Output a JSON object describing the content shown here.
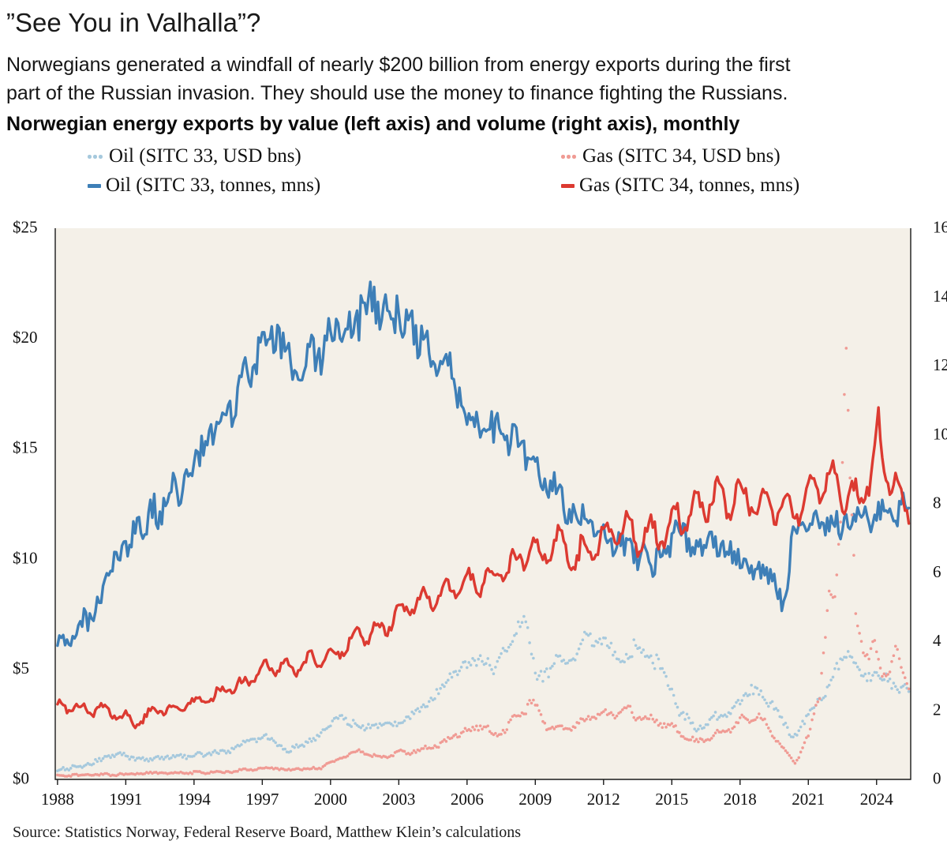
{
  "page": {
    "title": "”See You in Valhalla”?",
    "subtitle": "Norwegians generated a windfall of nearly $200 billion from energy exports during the first\npart of the Russian invasion. They should use the money to finance fighting the Russians.",
    "source": "Source: Statistics Norway, Federal Reserve Board, Matthew Klein’s calculations"
  },
  "chart_data": {
    "type": "line",
    "title": "Norwegian energy exports by value (left axis) and volume (right axis), monthly",
    "plot_bg": "#f4f0e8",
    "frame_color": "#1a1a1a",
    "text_color": "#111111",
    "x_range": [
      1987.9,
      2025.5
    ],
    "data_range": [
      1988.0,
      2025.42
    ],
    "x_ticks": [
      {
        "v": 1988,
        "label": "1988"
      },
      {
        "v": 1991,
        "label": "1991"
      },
      {
        "v": 1994,
        "label": "1994"
      },
      {
        "v": 1997,
        "label": "1997"
      },
      {
        "v": 2000,
        "label": "2000"
      },
      {
        "v": 2003,
        "label": "2003"
      },
      {
        "v": 2006,
        "label": "2006"
      },
      {
        "v": 2009,
        "label": "2009"
      },
      {
        "v": 2012,
        "label": "2012"
      },
      {
        "v": 2015,
        "label": "2015"
      },
      {
        "v": 2018,
        "label": "2018"
      },
      {
        "v": 2021,
        "label": "2021"
      },
      {
        "v": 2024,
        "label": "2024"
      }
    ],
    "left_axis": {
      "label": "USD bns",
      "range": [
        0,
        25
      ],
      "ticks": [
        {
          "v": 0,
          "label": "$0"
        },
        {
          "v": 5,
          "label": "$5"
        },
        {
          "v": 10,
          "label": "$10"
        },
        {
          "v": 15,
          "label": "$15"
        },
        {
          "v": 20,
          "label": "$20"
        },
        {
          "v": 25,
          "label": "$25"
        }
      ]
    },
    "right_axis": {
      "label": "tonnes, mns",
      "range": [
        0,
        16
      ],
      "ticks": [
        {
          "v": 0,
          "label": "0"
        },
        {
          "v": 2,
          "label": "2"
        },
        {
          "v": 4,
          "label": "4"
        },
        {
          "v": 6,
          "label": "6"
        },
        {
          "v": 8,
          "label": "8"
        },
        {
          "v": 10,
          "label": "10"
        },
        {
          "v": 12,
          "label": "12"
        },
        {
          "v": 14,
          "label": "14"
        },
        {
          "v": 16,
          "label": "16"
        }
      ]
    },
    "series": [
      {
        "name": "Oil (SITC 33, USD bns)",
        "id": "oil-usd",
        "axis": "left",
        "style": "dotted",
        "color": "#a6c9dd",
        "z": 1,
        "seed": 11,
        "noise_base": 0.07,
        "noise_rel": 0.05,
        "seasonal_rel": 0,
        "seasonal_phase": 0,
        "anchors": [
          [
            1988,
            0.4
          ],
          [
            1989,
            0.6
          ],
          [
            1990,
            0.95
          ],
          [
            1990.8,
            1.1
          ],
          [
            1991.6,
            0.9
          ],
          [
            1993,
            1.0
          ],
          [
            1994.5,
            1.1
          ],
          [
            1995.5,
            1.3
          ],
          [
            1996.5,
            1.8
          ],
          [
            1997.3,
            1.9
          ],
          [
            1998.2,
            1.3
          ],
          [
            1999,
            1.6
          ],
          [
            1999.9,
            2.4
          ],
          [
            2000.5,
            2.9
          ],
          [
            2001.4,
            2.3
          ],
          [
            2002.2,
            2.4
          ],
          [
            2003,
            2.6
          ],
          [
            2004,
            3.2
          ],
          [
            2005,
            4.3
          ],
          [
            2006,
            5.2
          ],
          [
            2006.6,
            5.6
          ],
          [
            2007.2,
            5.0
          ],
          [
            2007.9,
            6.2
          ],
          [
            2008.5,
            7.6
          ],
          [
            2009.1,
            4.4
          ],
          [
            2009.9,
            5.4
          ],
          [
            2010.6,
            5.5
          ],
          [
            2011.3,
            6.6
          ],
          [
            2012,
            6.1
          ],
          [
            2012.7,
            5.5
          ],
          [
            2013.3,
            6.0
          ],
          [
            2014,
            5.6
          ],
          [
            2014.7,
            4.9
          ],
          [
            2015.3,
            3.2
          ],
          [
            2016.1,
            2.4
          ],
          [
            2016.9,
            2.9
          ],
          [
            2017.6,
            3.1
          ],
          [
            2018.5,
            4.0
          ],
          [
            2019.4,
            3.5
          ],
          [
            2020.3,
            1.9
          ],
          [
            2021,
            2.8
          ],
          [
            2021.6,
            3.7
          ],
          [
            2022.3,
            5.2
          ],
          [
            2022.8,
            5.8
          ],
          [
            2023.4,
            4.6
          ],
          [
            2024,
            4.9
          ],
          [
            2024.7,
            4.3
          ],
          [
            2025.4,
            4.2
          ]
        ]
      },
      {
        "name": "Gas (SITC 34, USD bns)",
        "id": "gas-usd",
        "axis": "left",
        "style": "dotted",
        "color": "#f09b94",
        "z": 4,
        "seed": 22,
        "noise_base": 0.04,
        "noise_rel": 0.045,
        "seasonal_rel": 0.05,
        "seasonal_phase": 0.8,
        "anchors": [
          [
            1988,
            0.18
          ],
          [
            1990,
            0.22
          ],
          [
            1992,
            0.27
          ],
          [
            1994,
            0.3
          ],
          [
            1995.5,
            0.35
          ],
          [
            1997,
            0.5
          ],
          [
            1998.5,
            0.45
          ],
          [
            1999.6,
            0.55
          ],
          [
            2000.6,
            1.05
          ],
          [
            2001.3,
            1.35
          ],
          [
            2002.1,
            1.0
          ],
          [
            2003,
            1.2
          ],
          [
            2004,
            1.3
          ],
          [
            2005,
            1.7
          ],
          [
            2005.9,
            2.2
          ],
          [
            2006.6,
            2.4
          ],
          [
            2007.3,
            2.0
          ],
          [
            2008,
            2.7
          ],
          [
            2008.8,
            3.5
          ],
          [
            2009.6,
            2.3
          ],
          [
            2010.3,
            2.2
          ],
          [
            2011,
            2.6
          ],
          [
            2012,
            3.0
          ],
          [
            2013,
            3.1
          ],
          [
            2014,
            2.7
          ],
          [
            2015,
            2.4
          ],
          [
            2016,
            1.7
          ],
          [
            2017,
            2.0
          ],
          [
            2018,
            2.6
          ],
          [
            2018.8,
            2.9
          ],
          [
            2019.6,
            1.8
          ],
          [
            2020.4,
            0.7
          ],
          [
            2021,
            1.9
          ],
          [
            2021.5,
            4.0
          ],
          [
            2021.9,
            8.5
          ],
          [
            2022.15,
            7.8
          ],
          [
            2022.45,
            12.5
          ],
          [
            2022.63,
            21.4
          ],
          [
            2022.8,
            14.5
          ],
          [
            2023.1,
            7.0
          ],
          [
            2023.5,
            5.6
          ],
          [
            2023.9,
            6.2
          ],
          [
            2024.3,
            4.6
          ],
          [
            2024.8,
            5.9
          ],
          [
            2025.1,
            4.8
          ],
          [
            2025.4,
            4.1
          ]
        ]
      },
      {
        "name": "Oil (SITC 33, tonnes, mns)",
        "id": "oil-tonnes",
        "axis": "right",
        "style": "solid",
        "color": "#3e7fb7",
        "z": 2,
        "seed": 33,
        "noise_base": 0.2,
        "noise_rel": 0.042,
        "seasonal_rel": 0,
        "seasonal_phase": 0,
        "anchors": [
          [
            1988,
            4.15
          ],
          [
            1988.6,
            4.3
          ],
          [
            1989.5,
            4.9
          ],
          [
            1990.5,
            6.3
          ],
          [
            1991.5,
            7.2
          ],
          [
            1992.5,
            7.9
          ],
          [
            1993.5,
            8.7
          ],
          [
            1994.5,
            9.6
          ],
          [
            1995.5,
            10.4
          ],
          [
            1996.5,
            11.9
          ],
          [
            1997.3,
            12.9
          ],
          [
            1998.1,
            12.4
          ],
          [
            1998.9,
            12.1
          ],
          [
            1999.6,
            12.4
          ],
          [
            2000.3,
            13.1
          ],
          [
            2001,
            13.2
          ],
          [
            2001.8,
            13.8
          ],
          [
            2002.6,
            13.3
          ],
          [
            2003.3,
            13.0
          ],
          [
            2004.1,
            12.6
          ],
          [
            2004.9,
            12.0
          ],
          [
            2005.6,
            11.3
          ],
          [
            2006.3,
            10.6
          ],
          [
            2007.1,
            10.1
          ],
          [
            2008.1,
            9.7
          ],
          [
            2009,
            9.2
          ],
          [
            2010,
            8.3
          ],
          [
            2011,
            7.4
          ],
          [
            2012,
            7.1
          ],
          [
            2013,
            6.8
          ],
          [
            2014.1,
            6.4
          ],
          [
            2014.9,
            6.9
          ],
          [
            2015.6,
            7.0
          ],
          [
            2016.6,
            6.9
          ],
          [
            2017.6,
            6.6
          ],
          [
            2018.6,
            6.2
          ],
          [
            2019.4,
            6.1
          ],
          [
            2019.9,
            4.9
          ],
          [
            2020.3,
            7.0
          ],
          [
            2021,
            7.3
          ],
          [
            2022,
            7.3
          ],
          [
            2023,
            7.5
          ],
          [
            2024,
            7.7
          ],
          [
            2025.4,
            8.1
          ]
        ]
      },
      {
        "name": "Gas (SITC 34, tonnes, mns)",
        "id": "gas-tonnes",
        "axis": "right",
        "style": "solid",
        "color": "#dc3a31",
        "z": 3,
        "seed": 44,
        "noise_base": 0.06,
        "noise_rel": 0.028,
        "seasonal_rel": 0.055,
        "seasonal_phase": 0.8,
        "anchors": [
          [
            1988,
            2.1
          ],
          [
            1989,
            2.05
          ],
          [
            1990.2,
            2.0
          ],
          [
            1991,
            1.8
          ],
          [
            1991.4,
            1.6
          ],
          [
            1992.1,
            2.0
          ],
          [
            1993,
            2.05
          ],
          [
            1994,
            2.2
          ],
          [
            1995,
            2.45
          ],
          [
            1996,
            2.75
          ],
          [
            1997,
            3.15
          ],
          [
            1998,
            3.3
          ],
          [
            1999,
            3.4
          ],
          [
            2000,
            3.55
          ],
          [
            2001,
            4.0
          ],
          [
            2002,
            4.35
          ],
          [
            2003,
            4.8
          ],
          [
            2004,
            5.2
          ],
          [
            2005,
            5.5
          ],
          [
            2006,
            5.6
          ],
          [
            2007,
            5.75
          ],
          [
            2008,
            6.3
          ],
          [
            2009,
            6.5
          ],
          [
            2010,
            6.8
          ],
          [
            2010.9,
            6.4
          ],
          [
            2011.6,
            6.7
          ],
          [
            2012.2,
            7.3
          ],
          [
            2013,
            7.1
          ],
          [
            2014,
            7.0
          ],
          [
            2015,
            7.5
          ],
          [
            2016,
            7.8
          ],
          [
            2017,
            8.2
          ],
          [
            2018,
            8.2
          ],
          [
            2019,
            8.0
          ],
          [
            2020,
            7.7
          ],
          [
            2020.8,
            8.0
          ],
          [
            2021.4,
            8.5
          ],
          [
            2022,
            8.6
          ],
          [
            2022.7,
            8.3
          ],
          [
            2023.3,
            8.2
          ],
          [
            2023.85,
            9.2
          ],
          [
            2024.05,
            10.3
          ],
          [
            2024.35,
            8.9
          ],
          [
            2024.8,
            8.6
          ],
          [
            2025.1,
            8.1
          ],
          [
            2025.4,
            7.8
          ]
        ]
      }
    ]
  }
}
